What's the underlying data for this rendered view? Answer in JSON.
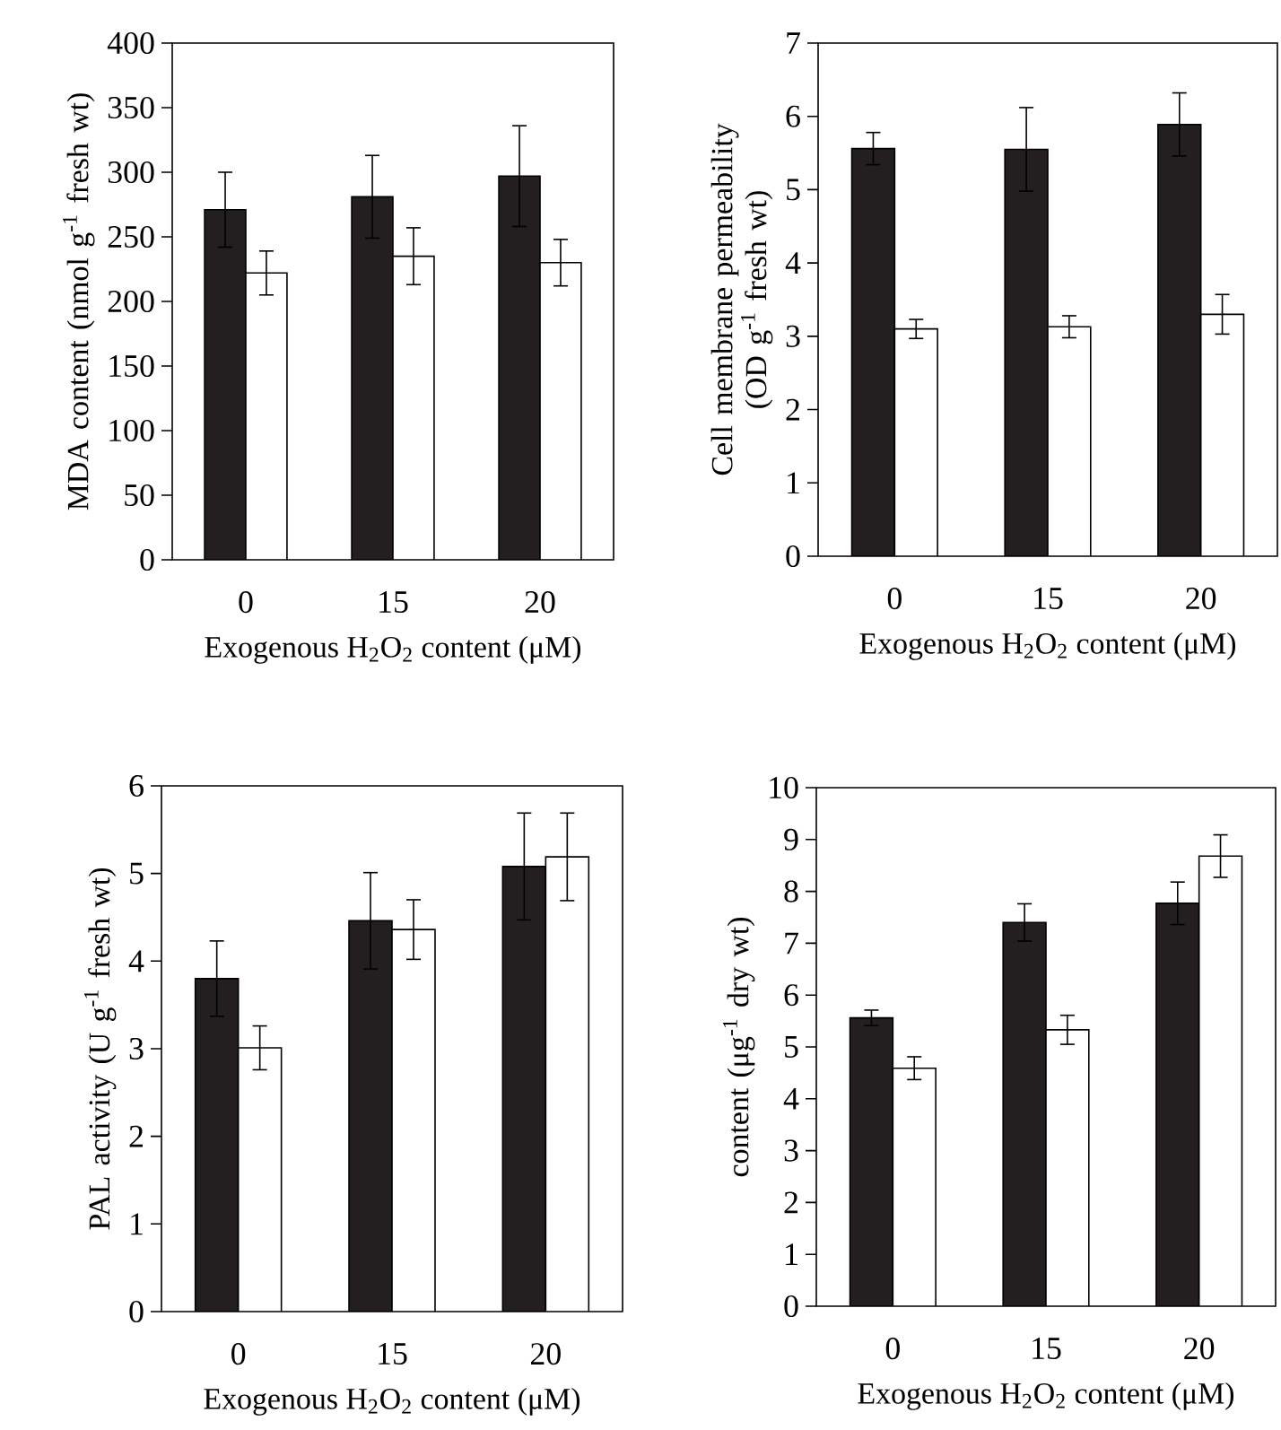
{
  "chart_data": [
    {
      "type": "bar",
      "categories": [
        "0",
        "15",
        "20"
      ],
      "xlabel": "Exogenous H$_{2}$O$_{2}$ content (μM)",
      "ylabel": "MDA content (nmol g$^{-1}$ fresh wt)",
      "ylim": [
        0,
        400
      ],
      "yticks": [
        0,
        50,
        100,
        150,
        200,
        250,
        300,
        350,
        400
      ],
      "series": [
        {
          "color": "#231f20",
          "values": [
            271,
            281,
            297
          ],
          "errors": [
            29,
            32,
            39
          ]
        },
        {
          "color": "#ffffff",
          "values": [
            222,
            235,
            230
          ],
          "errors": [
            17,
            22,
            18
          ]
        }
      ]
    },
    {
      "type": "bar",
      "categories": [
        "0",
        "15",
        "20"
      ],
      "xlabel": "Exogenous H$_{2}$O$_{2}$ content (μM)",
      "ylabel": "Cell membrane permeability (OD g$^{-1}$ fresh wt)",
      "ylim": [
        0,
        7
      ],
      "yticks": [
        0,
        1,
        2,
        3,
        4,
        5,
        6,
        7
      ],
      "series": [
        {
          "color": "#231f20",
          "values": [
            5.56,
            5.55,
            5.89
          ],
          "errors": [
            0.22,
            0.57,
            0.43
          ]
        },
        {
          "color": "#ffffff",
          "values": [
            3.1,
            3.13,
            3.3
          ],
          "errors": [
            0.13,
            0.15,
            0.27
          ]
        }
      ]
    },
    {
      "type": "bar",
      "categories": [
        "0",
        "15",
        "20"
      ],
      "xlabel": "Exogenous H$_{2}$O$_{2}$ content (μM)",
      "ylabel": "PAL activity (U g$^{-1}$ fresh wt)",
      "ylim": [
        0,
        6
      ],
      "yticks": [
        0,
        1,
        2,
        3,
        4,
        5,
        6
      ],
      "series": [
        {
          "color": "#231f20",
          "values": [
            3.8,
            4.46,
            5.08
          ],
          "errors": [
            0.43,
            0.55,
            0.61
          ]
        },
        {
          "color": "#ffffff",
          "values": [
            3.01,
            4.36,
            5.19
          ],
          "errors": [
            0.25,
            0.34,
            0.5
          ]
        }
      ]
    },
    {
      "type": "bar",
      "categories": [
        "0",
        "15",
        "20"
      ],
      "xlabel": "Exogenous H$_{2}$O$_{2}$ content (μM)",
      "ylabel": "content (μg$^{-1}$ dry wt)",
      "ylim": [
        0,
        10
      ],
      "yticks": [
        0,
        1,
        2,
        3,
        4,
        5,
        6,
        7,
        8,
        9,
        10
      ],
      "series": [
        {
          "color": "#231f20",
          "values": [
            5.56,
            7.4,
            7.77
          ],
          "errors": [
            0.15,
            0.36,
            0.41
          ]
        },
        {
          "color": "#ffffff",
          "values": [
            4.59,
            5.33,
            8.68
          ],
          "errors": [
            0.22,
            0.28,
            0.41
          ]
        }
      ]
    }
  ]
}
